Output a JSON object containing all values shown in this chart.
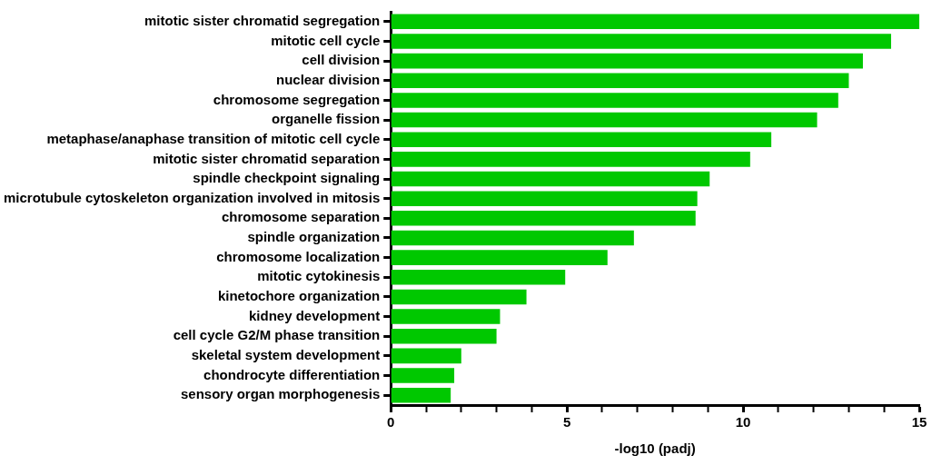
{
  "chart_data": {
    "type": "bar",
    "orientation": "horizontal",
    "xlabel": "-log10 (padj)",
    "categories": [
      "mitotic sister chromatid segregation",
      "mitotic cell cycle",
      "cell division",
      "nuclear division",
      "chromosome segregation",
      "organelle fission",
      "metaphase/anaphase transition of mitotic cell cycle",
      "mitotic sister chromatid separation",
      "spindle checkpoint signaling",
      "microtubule cytoskeleton organization involved in mitosis",
      "chromosome separation",
      "spindle organization",
      "chromosome localization",
      "mitotic cytokinesis",
      "kinetochore organization",
      "kidney development",
      "cell cycle G2/M phase transition",
      "skeletal system development",
      "chondrocyte differentiation",
      "sensory organ morphogenesis"
    ],
    "values": [
      15.0,
      14.2,
      13.4,
      13.0,
      12.7,
      12.1,
      10.8,
      10.2,
      9.05,
      8.7,
      8.65,
      6.9,
      6.15,
      4.95,
      3.85,
      3.1,
      3.0,
      2.0,
      1.8,
      1.7
    ],
    "color": "#00c800",
    "xlim": [
      0,
      15
    ],
    "xticks": [
      0,
      {
        "value": 1,
        "label": null
      },
      {
        "value": 2,
        "label": null
      },
      {
        "value": 3,
        "label": null
      },
      {
        "value": 4,
        "label": null
      },
      5,
      {
        "value": 6,
        "label": null
      },
      {
        "value": 7,
        "label": null
      },
      {
        "value": 8,
        "label": null
      },
      {
        "value": 9,
        "label": null
      },
      10,
      {
        "value": 11,
        "label": null
      },
      {
        "value": 12,
        "label": null
      },
      {
        "value": 13,
        "label": null
      },
      {
        "value": 14,
        "label": null
      },
      15
    ],
    "grid": false,
    "legend": false
  }
}
